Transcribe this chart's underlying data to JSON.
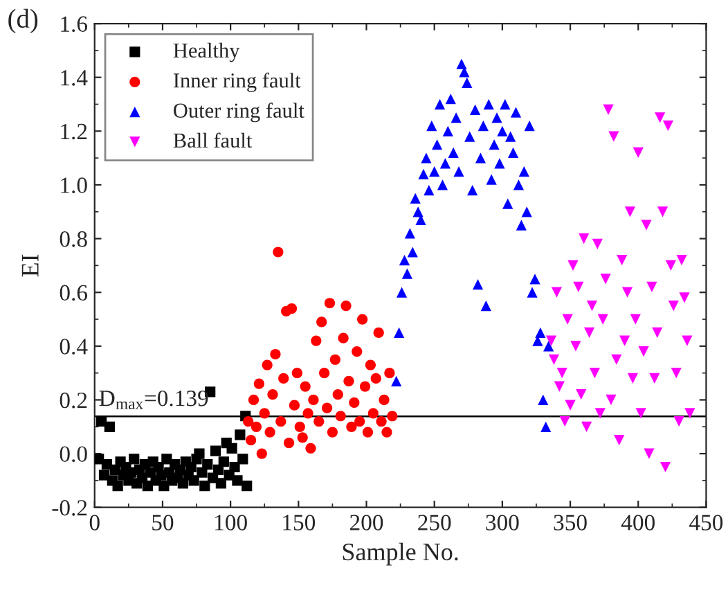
{
  "chart_data": {
    "type": "scatter",
    "xlabel": "Sample No.",
    "ylabel": "EI",
    "annotations": [
      "(d)"
    ],
    "xlim": [
      0,
      450
    ],
    "xticks": [
      0,
      50,
      100,
      150,
      200,
      250,
      300,
      350,
      400,
      450
    ],
    "ylim": [
      -0.2,
      1.6
    ],
    "yticks": [
      {
        "value": -0.2,
        "label": "-0.2"
      },
      {
        "value": 0,
        "label": "0.0"
      },
      {
        "value": 0.2,
        "label": "0.2"
      },
      {
        "value": 0.4,
        "label": "0.4"
      },
      {
        "value": 0.6,
        "label": "0.6"
      },
      {
        "value": 0.8,
        "label": "0.8"
      },
      {
        "value": 1,
        "label": "1.0"
      },
      {
        "value": 1.2,
        "label": "1.2"
      },
      {
        "value": 1.4,
        "label": "1.4"
      },
      {
        "value": 1.6,
        "label": "1.6"
      }
    ],
    "ref_lines": [
      {
        "axis": "y",
        "value": 0.139,
        "label": "D$_{max}$=0.139",
        "color": "#000000"
      }
    ],
    "legend": "top left",
    "grid": false,
    "series": [
      {
        "name": "Healthy",
        "color": "#000000",
        "marker": "square",
        "x": [
          3,
          5,
          7,
          9,
          11,
          13,
          15,
          17,
          19,
          21,
          23,
          25,
          27,
          29,
          31,
          33,
          35,
          37,
          39,
          41,
          43,
          45,
          47,
          49,
          51,
          53,
          55,
          57,
          59,
          61,
          63,
          65,
          67,
          69,
          71,
          73,
          75,
          77,
          79,
          81,
          83,
          85,
          87,
          89,
          91,
          93,
          95,
          97,
          99,
          101,
          103,
          105,
          107,
          109,
          111,
          112
        ],
        "values": [
          -0.02,
          0.12,
          -0.08,
          -0.04,
          0.1,
          -0.1,
          -0.06,
          -0.12,
          -0.03,
          -0.08,
          -0.05,
          -0.1,
          -0.07,
          -0.02,
          -0.11,
          -0.06,
          -0.09,
          -0.04,
          -0.12,
          -0.07,
          -0.03,
          -0.1,
          -0.05,
          -0.08,
          -0.12,
          -0.02,
          -0.07,
          -0.1,
          -0.04,
          -0.09,
          -0.06,
          -0.11,
          -0.03,
          -0.08,
          -0.05,
          -0.1,
          -0.02,
          0.0,
          -0.07,
          -0.12,
          -0.04,
          0.23,
          -0.09,
          0.01,
          -0.06,
          -0.11,
          -0.03,
          0.04,
          -0.08,
          0.02,
          -0.05,
          -0.1,
          0.07,
          -0.02,
          0.14,
          -0.12
        ]
      },
      {
        "name": "Inner ring fault",
        "color": "#ff0000",
        "marker": "circle",
        "x": [
          113,
          115,
          117,
          119,
          121,
          123,
          125,
          127,
          129,
          131,
          133,
          135,
          137,
          139,
          141,
          143,
          145,
          147,
          149,
          151,
          153,
          155,
          157,
          159,
          161,
          163,
          165,
          167,
          169,
          171,
          173,
          175,
          177,
          179,
          181,
          183,
          185,
          187,
          189,
          191,
          193,
          195,
          197,
          199,
          201,
          203,
          205,
          207,
          209,
          211,
          213,
          215,
          217,
          219
        ],
        "values": [
          0.12,
          0.05,
          0.2,
          0.1,
          0.26,
          0.0,
          0.15,
          0.33,
          0.08,
          0.22,
          0.37,
          0.75,
          0.12,
          0.28,
          0.53,
          0.04,
          0.54,
          0.18,
          0.3,
          0.1,
          0.06,
          0.25,
          0.15,
          0.02,
          0.2,
          0.42,
          0.12,
          0.49,
          0.3,
          0.17,
          0.56,
          0.08,
          0.35,
          0.22,
          0.14,
          0.43,
          0.55,
          0.27,
          0.1,
          0.19,
          0.38,
          0.12,
          0.5,
          0.25,
          0.08,
          0.33,
          0.15,
          0.28,
          0.45,
          0.12,
          0.2,
          0.08,
          0.3,
          0.14
        ]
      },
      {
        "name": "Outer ring fault",
        "color": "#0000ff",
        "marker": "triangle",
        "x": [
          222,
          224,
          226,
          228,
          230,
          232,
          234,
          236,
          238,
          240,
          242,
          244,
          246,
          248,
          250,
          252,
          254,
          256,
          258,
          260,
          262,
          264,
          266,
          268,
          270,
          272,
          274,
          276,
          278,
          280,
          282,
          284,
          286,
          288,
          290,
          292,
          294,
          296,
          298,
          300,
          302,
          304,
          306,
          308,
          310,
          312,
          314,
          316,
          318,
          320,
          322,
          324,
          326,
          328,
          330,
          332,
          334
        ],
        "values": [
          0.27,
          0.45,
          0.6,
          0.72,
          0.67,
          0.82,
          0.75,
          0.95,
          0.9,
          0.87,
          1.04,
          1.1,
          0.98,
          1.22,
          1.05,
          1.15,
          1.3,
          1.0,
          1.08,
          1.2,
          1.32,
          1.12,
          1.25,
          1.05,
          1.45,
          1.42,
          1.38,
          1.18,
          0.98,
          1.28,
          0.63,
          1.1,
          1.22,
          0.55,
          1.3,
          1.02,
          1.15,
          1.25,
          1.08,
          1.2,
          1.3,
          0.93,
          1.18,
          1.12,
          1.27,
          1.0,
          0.85,
          1.05,
          0.9,
          1.22,
          0.6,
          0.65,
          0.42,
          0.45,
          0.2,
          0.1,
          0.4
        ]
      },
      {
        "name": "Ball fault",
        "color": "#ff00ff",
        "marker": "triangle_down",
        "x": [
          336,
          338,
          340,
          342,
          344,
          346,
          348,
          350,
          352,
          354,
          356,
          358,
          360,
          362,
          364,
          366,
          368,
          370,
          372,
          374,
          376,
          378,
          380,
          382,
          384,
          386,
          388,
          390,
          392,
          394,
          396,
          398,
          400,
          402,
          404,
          406,
          408,
          410,
          412,
          414,
          416,
          418,
          420,
          422,
          424,
          426,
          428,
          430,
          432,
          434,
          436,
          438
        ],
        "values": [
          0.42,
          0.35,
          0.6,
          0.25,
          0.3,
          0.12,
          0.5,
          0.18,
          0.7,
          0.4,
          0.62,
          0.22,
          0.8,
          0.1,
          0.45,
          0.55,
          0.3,
          0.78,
          0.15,
          0.5,
          0.65,
          1.28,
          0.2,
          1.18,
          0.35,
          0.05,
          0.72,
          0.42,
          0.6,
          0.9,
          0.28,
          0.5,
          1.12,
          0.15,
          0.38,
          0.85,
          0.0,
          0.62,
          0.28,
          0.45,
          1.25,
          0.9,
          -0.05,
          1.22,
          0.7,
          0.55,
          0.3,
          0.12,
          0.72,
          0.58,
          0.42,
          0.15
        ]
      }
    ]
  }
}
